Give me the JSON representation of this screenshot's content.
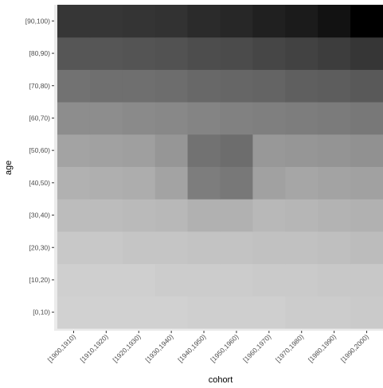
{
  "chart_data": {
    "type": "heatmap",
    "xlabel": "cohort",
    "ylabel": "age",
    "x_categories": [
      "[1900,1910)",
      "[1910,1920)",
      "[1920,1930)",
      "[1930,1940)",
      "[1940,1950)",
      "[1950,1960)",
      "[1960,1970)",
      "[1970,1980)",
      "[1980,1990)",
      "[1990,2000)"
    ],
    "y_categories": [
      "[0,10)",
      "[10,20)",
      "[20,30)",
      "[30,40)",
      "[40,50)",
      "[50,60)",
      "[60,70)",
      "[70,80)",
      "[80,90)",
      "[90,100)"
    ],
    "values": [
      [
        0.08,
        0.08,
        0.08,
        0.08,
        0.09,
        0.09,
        0.09,
        0.1,
        0.1,
        0.11
      ],
      [
        0.09,
        0.09,
        0.09,
        0.1,
        0.1,
        0.1,
        0.11,
        0.11,
        0.12,
        0.12
      ],
      [
        0.12,
        0.12,
        0.13,
        0.13,
        0.14,
        0.14,
        0.15,
        0.15,
        0.16,
        0.17
      ],
      [
        0.17,
        0.17,
        0.18,
        0.19,
        0.22,
        0.22,
        0.19,
        0.2,
        0.21,
        0.22
      ],
      [
        0.22,
        0.23,
        0.24,
        0.28,
        0.45,
        0.47,
        0.29,
        0.27,
        0.28,
        0.29
      ],
      [
        0.28,
        0.29,
        0.3,
        0.34,
        0.5,
        0.52,
        0.33,
        0.34,
        0.35,
        0.36
      ],
      [
        0.38,
        0.38,
        0.39,
        0.4,
        0.42,
        0.43,
        0.44,
        0.45,
        0.46,
        0.47
      ],
      [
        0.5,
        0.51,
        0.51,
        0.52,
        0.54,
        0.55,
        0.56,
        0.58,
        0.59,
        0.61
      ],
      [
        0.62,
        0.62,
        0.63,
        0.64,
        0.66,
        0.67,
        0.69,
        0.71,
        0.73,
        0.76
      ],
      [
        0.76,
        0.76,
        0.77,
        0.78,
        0.81,
        0.83,
        0.86,
        0.88,
        0.92,
        1.0
      ]
    ],
    "color_scale": {
      "low": "#e3e3e3",
      "high": "#000000"
    },
    "panel_background": "#ebebeb",
    "grid": true,
    "legend": "none"
  }
}
